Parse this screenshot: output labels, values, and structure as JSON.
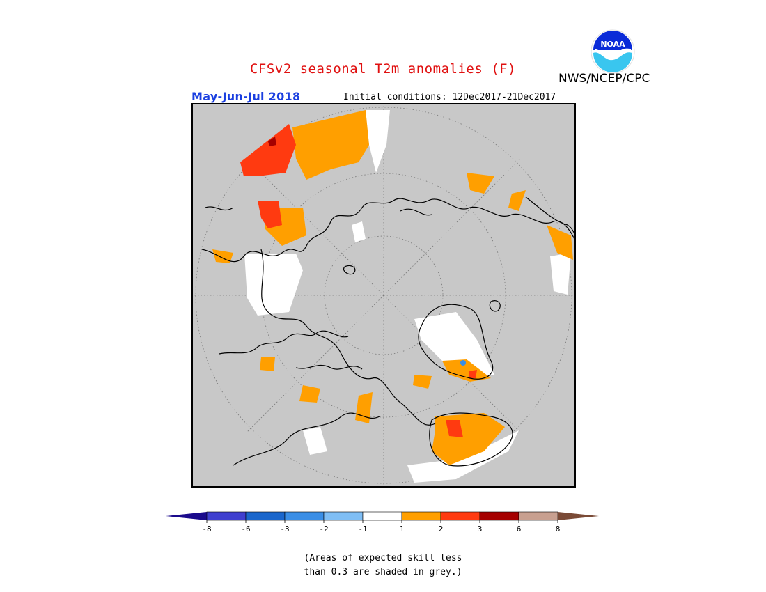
{
  "title": "CFSv2 seasonal T2m anomalies (F)",
  "org": "NWS/NCEP/CPC",
  "period": "May-Jun-Jul 2018",
  "initial_conditions": "Initial conditions: 12Dec2017-21Dec2017",
  "logo": {
    "text": "NOAA",
    "icon": "noaa-logo-icon"
  },
  "colorbar": {
    "tick_labels": [
      "-8",
      "-6",
      "-3",
      "-2",
      "-1",
      "1",
      "2",
      "3",
      "6",
      "8"
    ],
    "below_min_color": "#1a0a8c",
    "above_max_color": "#7a4a36",
    "bins": [
      {
        "color": "#3f3fcf"
      },
      {
        "color": "#1a66cc"
      },
      {
        "color": "#3a8ee6"
      },
      {
        "color": "#7fbef5"
      },
      {
        "color": "#ffffff"
      },
      {
        "color": "#ff9f00"
      },
      {
        "color": "#ff3a10"
      },
      {
        "color": "#a50000"
      },
      {
        "color": "#c8a090"
      }
    ]
  },
  "note_lines": [
    "(Areas of expected skill less",
    "than 0.3 are shaded in grey.)"
  ],
  "map": {
    "projection": "north polar stereographic",
    "background_color": "#c8c8c8"
  }
}
